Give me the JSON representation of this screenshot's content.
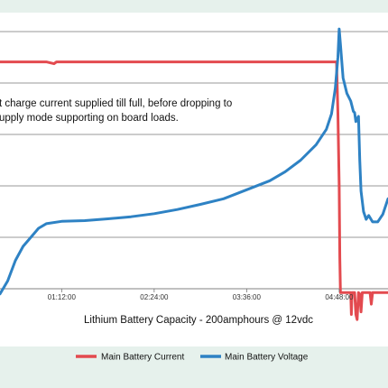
{
  "chart_data": {
    "type": "line",
    "title": "Lithium Battery Capacity - 200amphours @ 12vdc",
    "xlabel": "",
    "ylabel": "",
    "x_ticks": [
      "01:12:00",
      "02:24:00",
      "03:36:00",
      "04:48:00"
    ],
    "x_range": [
      "00:24:00",
      "05:26:00"
    ],
    "y_range": [
      0,
      100
    ],
    "grid": true,
    "legend_position": "bottom",
    "annotation": [
      "t charge current supplied till full, before dropping to",
      "upply mode supporting on board loads."
    ],
    "series": [
      {
        "name": "Main Battery Current",
        "color": "#e34a4f",
        "points": [
          [
            "00:24:00",
            88.2
          ],
          [
            "01:00:00",
            88.2
          ],
          [
            "01:06:00",
            87.5
          ],
          [
            "01:08:00",
            88.2
          ],
          [
            "02:00:00",
            88.2
          ],
          [
            "03:00:00",
            88.2
          ],
          [
            "04:00:00",
            88.2
          ],
          [
            "04:46:00",
            88.2
          ],
          [
            "04:47:00",
            68
          ],
          [
            "04:48:00",
            40
          ],
          [
            "04:48:30",
            12
          ],
          [
            "04:49:00",
            -1.5
          ],
          [
            "04:57:00",
            -1.5
          ],
          [
            "04:57:30",
            -10
          ],
          [
            "04:58:00",
            -1.5
          ],
          [
            "05:00:00",
            -1.5
          ],
          [
            "05:01:00",
            -10
          ],
          [
            "05:02:00",
            -12
          ],
          [
            "05:03:00",
            -1.5
          ],
          [
            "05:04:00",
            -2
          ],
          [
            "05:05:00",
            -9
          ],
          [
            "05:06:00",
            -1.5
          ],
          [
            "05:12:00",
            -1.5
          ],
          [
            "05:13:00",
            -6
          ],
          [
            "05:14:00",
            -1.5
          ],
          [
            "05:20:00",
            -1.5
          ],
          [
            "05:26:00",
            -1.5
          ]
        ]
      },
      {
        "name": "Main Battery Voltage",
        "color": "#2e82c4",
        "points": [
          [
            "00:24:00",
            -2
          ],
          [
            "00:30:00",
            3
          ],
          [
            "00:36:00",
            11
          ],
          [
            "00:42:00",
            16.5
          ],
          [
            "00:48:00",
            20
          ],
          [
            "00:54:00",
            23.5
          ],
          [
            "01:00:00",
            25.3
          ],
          [
            "01:12:00",
            26.2
          ],
          [
            "01:30:00",
            26.5
          ],
          [
            "01:48:00",
            27.2
          ],
          [
            "02:06:00",
            28
          ],
          [
            "02:24:00",
            29.2
          ],
          [
            "02:42:00",
            30.8
          ],
          [
            "03:00:00",
            32.8
          ],
          [
            "03:18:00",
            35
          ],
          [
            "03:36:00",
            38.5
          ],
          [
            "03:54:00",
            42
          ],
          [
            "04:06:00",
            45.5
          ],
          [
            "04:18:00",
            50
          ],
          [
            "04:30:00",
            56
          ],
          [
            "04:38:00",
            62
          ],
          [
            "04:42:00",
            68
          ],
          [
            "04:45:00",
            78
          ],
          [
            "04:47:00",
            90
          ],
          [
            "04:48:00",
            101
          ],
          [
            "04:49:00",
            95
          ],
          [
            "04:51:00",
            82
          ],
          [
            "04:54:00",
            76
          ],
          [
            "04:57:00",
            73
          ],
          [
            "04:59:00",
            69
          ],
          [
            "05:00:00",
            68.5
          ],
          [
            "05:01:00",
            65
          ],
          [
            "05:03:00",
            67
          ],
          [
            "05:04:00",
            50
          ],
          [
            "05:05:00",
            38
          ],
          [
            "05:07:00",
            30
          ],
          [
            "05:09:00",
            27
          ],
          [
            "05:11:00",
            28.5
          ],
          [
            "05:14:00",
            26
          ],
          [
            "05:18:00",
            26
          ],
          [
            "05:22:00",
            29
          ],
          [
            "05:26:00",
            35
          ]
        ]
      }
    ]
  }
}
